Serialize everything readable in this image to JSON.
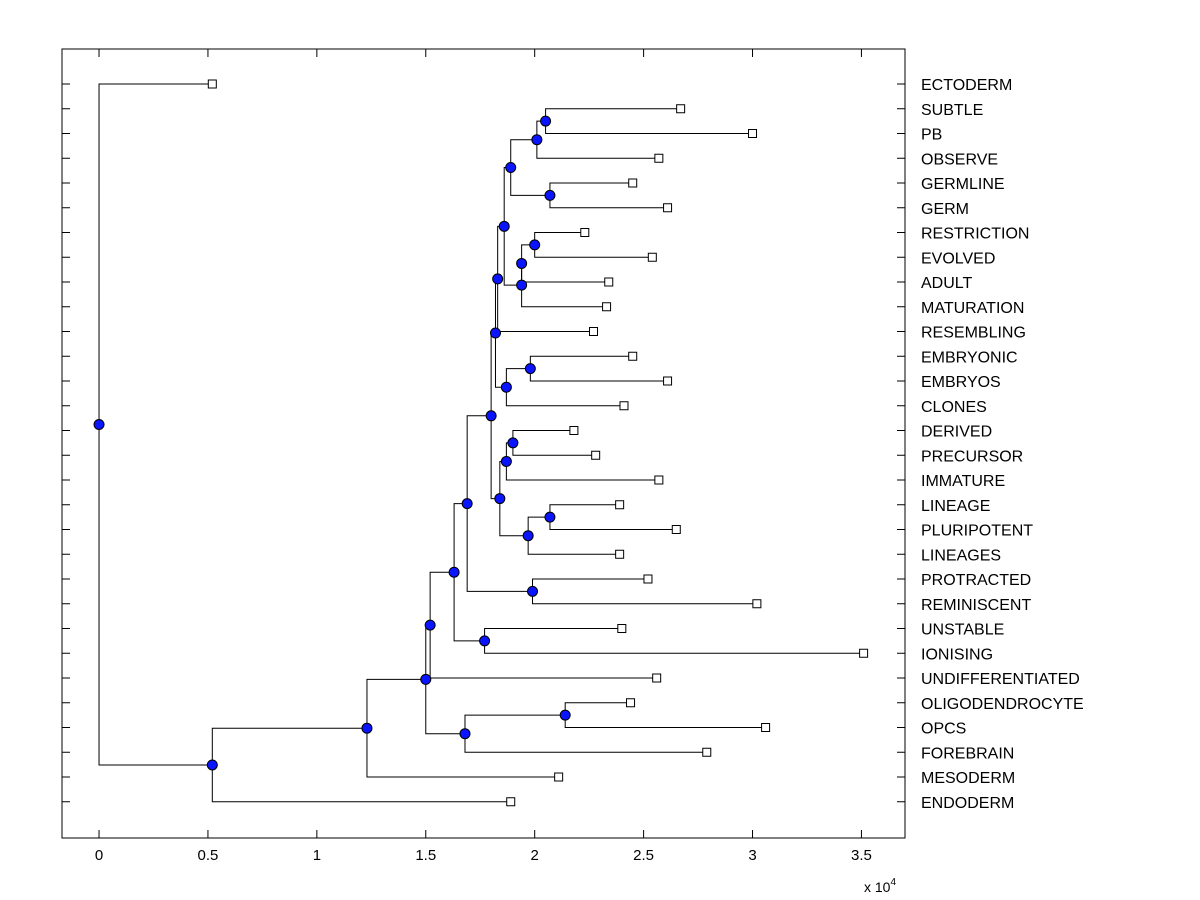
{
  "x_axis": {
    "ticks": [
      {
        "value": 0,
        "label": "0"
      },
      {
        "value": 0.5,
        "label": "0.5"
      },
      {
        "value": 1,
        "label": "1"
      },
      {
        "value": 1.5,
        "label": "1.5"
      },
      {
        "value": 2,
        "label": "2"
      },
      {
        "value": 2.5,
        "label": "2.5"
      },
      {
        "value": 3,
        "label": "3"
      },
      {
        "value": 3.5,
        "label": "3.5"
      }
    ],
    "multiplier_base": "x 10",
    "multiplier_exponent": "4",
    "range": [
      -0.17,
      3.7
    ]
  },
  "colors": {
    "node": "#0a14ff",
    "line": "#000000",
    "leaf_fill": "#ffffff"
  },
  "leaves": [
    {
      "label": "ECTODERM",
      "x": 0.52
    },
    {
      "label": "SUBTLE",
      "x": 2.67
    },
    {
      "label": "PB",
      "x": 3.0
    },
    {
      "label": "OBSERVE",
      "x": 2.57
    },
    {
      "label": "GERMLINE",
      "x": 2.45
    },
    {
      "label": "GERM",
      "x": 2.61
    },
    {
      "label": "RESTRICTION",
      "x": 2.23
    },
    {
      "label": "EVOLVED",
      "x": 2.54
    },
    {
      "label": "ADULT",
      "x": 2.34
    },
    {
      "label": "MATURATION",
      "x": 2.33
    },
    {
      "label": "RESEMBLING",
      "x": 2.27
    },
    {
      "label": "EMBRYONIC",
      "x": 2.45
    },
    {
      "label": "EMBRYOS",
      "x": 2.61
    },
    {
      "label": "CLONES",
      "x": 2.41
    },
    {
      "label": "DERIVED",
      "x": 2.18
    },
    {
      "label": "PRECURSOR",
      "x": 2.28
    },
    {
      "label": "IMMATURE",
      "x": 2.57
    },
    {
      "label": "LINEAGE",
      "x": 2.39
    },
    {
      "label": "PLURIPOTENT",
      "x": 2.65
    },
    {
      "label": "LINEAGES",
      "x": 2.39
    },
    {
      "label": "PROTRACTED",
      "x": 2.52
    },
    {
      "label": "REMINISCENT",
      "x": 3.02
    },
    {
      "label": "UNSTABLE",
      "x": 2.4
    },
    {
      "label": "IONISING",
      "x": 3.51
    },
    {
      "label": "UNDIFFERENTIATED",
      "x": 2.56
    },
    {
      "label": "OLIGODENDROCYTE",
      "x": 2.44
    },
    {
      "label": "OPCS",
      "x": 3.06
    },
    {
      "label": "FOREBRAIN",
      "x": 2.79
    },
    {
      "label": "MESODERM",
      "x": 2.11
    },
    {
      "label": "ENDODERM",
      "x": 1.89
    }
  ],
  "tree": {
    "x": 0.0,
    "children": [
      {
        "leaf": 0
      },
      {
        "x": 0.52,
        "children": [
          {
            "x": 1.23,
            "children": [
              {
                "x": 1.5,
                "children": [
                  {
                    "x": 1.52,
                    "children": [
                      {
                        "x": 1.63,
                        "children": [
                          {
                            "x": 1.69,
                            "children": [
                              {
                                "x": 1.8,
                                "children": [
                                  {
                                    "x": 1.82,
                                    "children": [
                                      {
                                        "x": 1.83,
                                        "children": [
                                          {
                                            "x": 1.86,
                                            "children": [
                                              {
                                                "x": 1.89,
                                                "children": [
                                                  {
                                                    "x": 2.01,
                                                    "children": [
                                                      {
                                                        "x": 2.05,
                                                        "children": [
                                                          {
                                                            "leaf": 1
                                                          },
                                                          {
                                                            "leaf": 2
                                                          }
                                                        ]
                                                      },
                                                      {
                                                        "leaf": 3
                                                      }
                                                    ]
                                                  },
                                                  {
                                                    "x": 2.07,
                                                    "children": [
                                                      {
                                                        "leaf": 4
                                                      },
                                                      {
                                                        "leaf": 5
                                                      }
                                                    ]
                                                  }
                                                ]
                                              },
                                              {
                                                "x": 1.94,
                                                "children": [
                                                  {
                                                    "x": 1.94,
                                                    "children": [
                                                      {
                                                        "x": 2.0,
                                                        "children": [
                                                          {
                                                            "leaf": 6
                                                          },
                                                          {
                                                            "leaf": 7
                                                          }
                                                        ]
                                                      },
                                                      {
                                                        "leaf": 8
                                                      }
                                                    ]
                                                  },
                                                  {
                                                    "leaf": 9
                                                  }
                                                ]
                                              }
                                            ]
                                          },
                                          {
                                            "leaf": 10
                                          }
                                        ]
                                      },
                                      {
                                        "x": 1.87,
                                        "children": [
                                          {
                                            "x": 1.98,
                                            "children": [
                                              {
                                                "leaf": 11
                                              },
                                              {
                                                "leaf": 12
                                              }
                                            ]
                                          },
                                          {
                                            "leaf": 13
                                          }
                                        ]
                                      }
                                    ]
                                  },
                                  {
                                    "x": 1.84,
                                    "children": [
                                      {
                                        "x": 1.87,
                                        "children": [
                                          {
                                            "x": 1.9,
                                            "children": [
                                              {
                                                "leaf": 14
                                              },
                                              {
                                                "leaf": 15
                                              }
                                            ]
                                          },
                                          {
                                            "leaf": 16
                                          }
                                        ]
                                      },
                                      {
                                        "x": 1.97,
                                        "children": [
                                          {
                                            "x": 2.07,
                                            "children": [
                                              {
                                                "leaf": 17
                                              },
                                              {
                                                "leaf": 18
                                              }
                                            ]
                                          },
                                          {
                                            "leaf": 19
                                          }
                                        ]
                                      }
                                    ]
                                  }
                                ]
                              },
                              {
                                "x": 1.99,
                                "children": [
                                  {
                                    "leaf": 20
                                  },
                                  {
                                    "leaf": 21
                                  }
                                ]
                              }
                            ]
                          },
                          {
                            "x": 1.77,
                            "children": [
                              {
                                "leaf": 22
                              },
                              {
                                "leaf": 23
                              }
                            ]
                          }
                        ]
                      },
                      {
                        "leaf": 24
                      }
                    ]
                  },
                  {
                    "x": 1.68,
                    "children": [
                      {
                        "x": 2.14,
                        "children": [
                          {
                            "leaf": 25
                          },
                          {
                            "leaf": 26
                          }
                        ]
                      },
                      {
                        "leaf": 27
                      }
                    ]
                  }
                ]
              },
              {
                "leaf": 28
              }
            ]
          },
          {
            "leaf": 29
          }
        ]
      }
    ]
  }
}
